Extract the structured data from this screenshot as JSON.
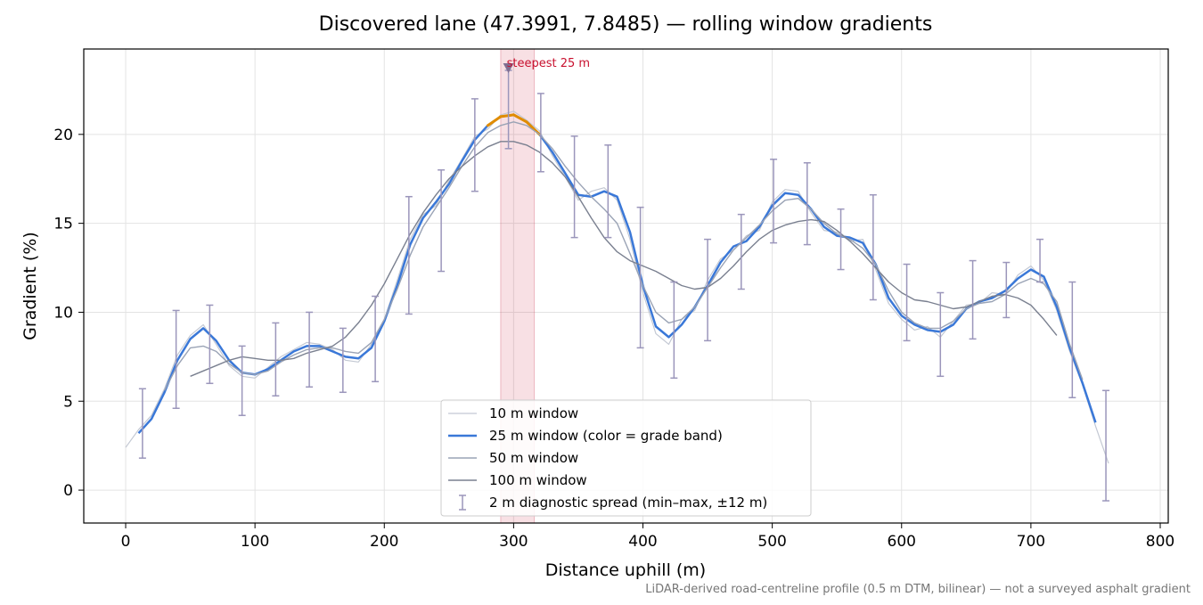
{
  "chart_data": {
    "type": "line",
    "title": "Discovered lane (47.3991, 7.8485) — rolling window gradients",
    "x_label": "Distance uphill (m)",
    "y_label": "Gradient (%)",
    "footnote": "LiDAR-derived road-centreline profile (0.5 m DTM, bilinear) — not a surveyed asphalt gradient",
    "xlim": [
      -32.4,
      806.2
    ],
    "ylim": [
      -1.85,
      24.8
    ],
    "xticks": [
      0,
      100,
      200,
      300,
      400,
      500,
      600,
      700,
      800
    ],
    "yticks": [
      0,
      5,
      10,
      15,
      20
    ],
    "grid": true,
    "legend": "lower center",
    "x": [
      0,
      10,
      20,
      30,
      40,
      50,
      60,
      70,
      80,
      90,
      100,
      110,
      120,
      130,
      140,
      150,
      160,
      170,
      180,
      190,
      200,
      210,
      220,
      230,
      240,
      250,
      260,
      270,
      280,
      290,
      300,
      310,
      320,
      330,
      340,
      350,
      360,
      370,
      380,
      390,
      400,
      410,
      420,
      430,
      440,
      450,
      460,
      470,
      480,
      490,
      500,
      510,
      520,
      530,
      540,
      550,
      560,
      570,
      580,
      590,
      600,
      610,
      620,
      630,
      640,
      650,
      660,
      670,
      680,
      690,
      700,
      710,
      720,
      730,
      740,
      750,
      760,
      770
    ],
    "series": [
      {
        "name": "10 m window",
        "color": "#c3c8d3",
        "width": 1.2,
        "values": [
          2.4,
          3.4,
          4.2,
          5.7,
          7.6,
          8.7,
          9.3,
          8.2,
          7.0,
          6.4,
          6.3,
          6.9,
          7.5,
          7.9,
          8.3,
          8.2,
          7.9,
          7.3,
          7.2,
          8.2,
          9.6,
          11.8,
          14.1,
          15.5,
          16.0,
          17.4,
          18.6,
          19.9,
          20.3,
          21.1,
          21.3,
          20.8,
          20.2,
          18.8,
          17.6,
          16.3,
          16.8,
          17.0,
          16.3,
          14.1,
          11.1,
          8.8,
          8.2,
          9.6,
          10.1,
          11.8,
          13.0,
          13.5,
          14.3,
          14.6,
          16.2,
          16.9,
          16.8,
          15.6,
          14.6,
          14.5,
          14.0,
          14.1,
          12.4,
          10.5,
          9.6,
          9.0,
          9.2,
          8.6,
          9.5,
          10.4,
          10.5,
          11.1,
          11.0,
          12.1,
          12.6,
          11.8,
          10.1,
          7.8,
          5.9,
          3.6,
          1.5,
          null
        ]
      },
      {
        "name": "25 m window (color = grade band)",
        "color": "#3a78d8",
        "width": 2.5,
        "band_colors": [
          {
            "from": 20,
            "color": "#e08c00"
          }
        ],
        "values": [
          null,
          3.2,
          4.0,
          5.5,
          7.3,
          8.5,
          9.1,
          8.4,
          7.3,
          6.6,
          6.5,
          6.8,
          7.3,
          7.8,
          8.1,
          8.1,
          7.8,
          7.5,
          7.4,
          8.0,
          9.5,
          11.5,
          13.8,
          15.3,
          16.2,
          17.2,
          18.5,
          19.7,
          20.5,
          21.0,
          21.1,
          20.7,
          20.0,
          19.0,
          17.8,
          16.6,
          16.5,
          16.8,
          16.5,
          14.5,
          11.5,
          9.2,
          8.6,
          9.3,
          10.3,
          11.5,
          12.8,
          13.7,
          14.0,
          14.8,
          16.0,
          16.7,
          16.6,
          15.8,
          14.8,
          14.3,
          14.2,
          13.9,
          12.7,
          10.8,
          9.8,
          9.3,
          9.0,
          8.9,
          9.3,
          10.2,
          10.6,
          10.8,
          11.2,
          11.9,
          12.4,
          12.0,
          10.3,
          8.0,
          6.0,
          3.8,
          null,
          null
        ]
      },
      {
        "name": "50 m window",
        "color": "#9aa3b5",
        "width": 1.4,
        "values": [
          null,
          null,
          null,
          5.6,
          7.0,
          8.0,
          8.1,
          7.8,
          7.1,
          6.6,
          6.5,
          6.7,
          7.2,
          7.6,
          7.9,
          8.0,
          8.0,
          7.8,
          7.7,
          8.3,
          9.6,
          11.3,
          13.2,
          14.8,
          15.9,
          17.0,
          18.2,
          19.3,
          20.1,
          20.5,
          20.7,
          20.5,
          20.0,
          19.2,
          18.2,
          17.3,
          16.5,
          15.8,
          15.0,
          13.3,
          11.5,
          10.0,
          9.4,
          9.6,
          10.3,
          11.4,
          12.5,
          13.5,
          14.2,
          14.9,
          15.7,
          16.3,
          16.4,
          15.8,
          15.0,
          14.4,
          14.1,
          13.6,
          12.7,
          11.2,
          10.0,
          9.4,
          9.1,
          9.1,
          9.5,
          10.2,
          10.5,
          10.6,
          11.0,
          11.6,
          11.9,
          11.6,
          10.6,
          8.2,
          6.2,
          null,
          null,
          null
        ]
      },
      {
        "name": "100 m window",
        "color": "#7a8090",
        "width": 1.4,
        "values": [
          null,
          null,
          null,
          null,
          null,
          6.4,
          6.7,
          7.0,
          7.3,
          7.5,
          7.4,
          7.3,
          7.3,
          7.4,
          7.7,
          7.9,
          8.1,
          8.6,
          9.4,
          10.4,
          11.6,
          13.0,
          14.4,
          15.6,
          16.6,
          17.5,
          18.2,
          18.8,
          19.3,
          19.6,
          19.6,
          19.4,
          19.0,
          18.4,
          17.6,
          16.5,
          15.3,
          14.2,
          13.4,
          12.9,
          12.6,
          12.3,
          11.9,
          11.5,
          11.3,
          11.4,
          11.9,
          12.6,
          13.4,
          14.1,
          14.6,
          14.9,
          15.1,
          15.2,
          15.1,
          14.6,
          14.0,
          13.3,
          12.5,
          11.7,
          11.1,
          10.7,
          10.6,
          10.4,
          10.2,
          10.3,
          10.6,
          10.9,
          11.0,
          10.8,
          10.4,
          9.6,
          8.7,
          null,
          null,
          null,
          null,
          null
        ]
      }
    ],
    "error_bars": {
      "name": "2 m diagnostic spread (min–max, ±12 m)",
      "color": "#9b96bb",
      "x": [
        13,
        39,
        65,
        90,
        116,
        142,
        168,
        193,
        219,
        244,
        270,
        296,
        321,
        347,
        373,
        398,
        424,
        450,
        476,
        501,
        527,
        553,
        578,
        604,
        630,
        655,
        681,
        707,
        732,
        758
      ],
      "min": [
        1.8,
        4.6,
        6.0,
        4.2,
        5.3,
        5.8,
        5.5,
        6.1,
        9.9,
        12.3,
        16.8,
        19.2,
        17.9,
        14.2,
        14.2,
        8.0,
        6.3,
        8.4,
        11.3,
        13.9,
        13.8,
        12.4,
        10.7,
        8.4,
        6.4,
        8.5,
        9.7,
        11.7,
        5.2,
        -0.6
      ],
      "max": [
        5.7,
        10.1,
        10.4,
        8.1,
        9.4,
        10.0,
        9.1,
        10.9,
        16.5,
        18.0,
        22.0,
        23.6,
        22.3,
        19.9,
        19.4,
        15.9,
        11.7,
        14.1,
        15.5,
        18.6,
        18.4,
        15.8,
        16.6,
        12.7,
        11.1,
        12.9,
        12.8,
        14.1,
        11.7,
        5.6
      ]
    },
    "steepest": {
      "label": "steepest 25 m",
      "range": [
        290,
        316
      ],
      "x": 296,
      "y": 23.8,
      "color": "#c8102e"
    }
  }
}
